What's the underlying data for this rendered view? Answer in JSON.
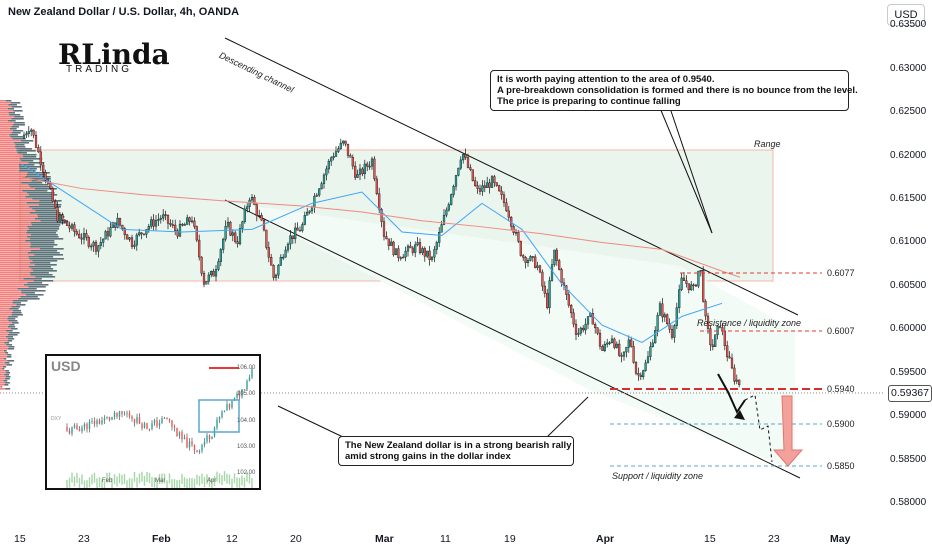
{
  "header": {
    "title": "New Zealand Dollar / U.S. Dollar, 4h, OANDA",
    "currency_button": "USD"
  },
  "logo": {
    "mark": "RLinda",
    "sub": "TRADING"
  },
  "annotations": {
    "top_note": [
      "It is worth paying attention to the area of 0.9540.",
      "A pre-breakdown consolidation is formed and there is no bounce from the level.",
      "The price is preparing to continue falling"
    ],
    "bottom_note": [
      "The New Zealand dollar is in a strong bearish rally",
      "amid strong gains in the dollar index"
    ],
    "channel_label": "Descending channel",
    "range_label": "Range",
    "resistance_label": "Resistance / liquidity zone",
    "support_label": "Support / liquidity zone"
  },
  "levels": [
    "0.6077",
    "0.6007",
    "0.5940",
    "0.5900",
    "0.5850"
  ],
  "current_price": "0.59367",
  "colors": {
    "bull": "#26a69a",
    "bear": "#ef5350",
    "ma_blue": "#42a5f5",
    "ma_red": "#f08a80",
    "range_fill": "#eaf5ee",
    "range_border": "#f5b7a8",
    "arrow": "#e57373"
  },
  "chart_data": {
    "type": "candlestick",
    "x_ticks": [
      "15",
      "23",
      "Feb",
      "12",
      "20",
      "Mar",
      "11",
      "19",
      "Apr",
      "15",
      "23",
      "May"
    ],
    "y_ticks": [
      "0.63500",
      "0.63000",
      "0.62500",
      "0.62000",
      "0.61500",
      "0.61000",
      "0.60500",
      "0.60000",
      "0.59500",
      "0.59000",
      "0.58500",
      "0.58000"
    ],
    "ylim": [
      0.5775,
      0.6372
    ],
    "path": [
      [
        0,
        0.622
      ],
      [
        8,
        0.6235
      ],
      [
        20,
        0.619
      ],
      [
        35,
        0.613
      ],
      [
        55,
        0.611
      ],
      [
        75,
        0.6095
      ],
      [
        95,
        0.6125
      ],
      [
        110,
        0.61
      ],
      [
        125,
        0.6118
      ],
      [
        140,
        0.613
      ],
      [
        155,
        0.6112
      ],
      [
        170,
        0.6128
      ],
      [
        182,
        0.6055
      ],
      [
        192,
        0.6065
      ],
      [
        205,
        0.612
      ],
      [
        215,
        0.61
      ],
      [
        228,
        0.6155
      ],
      [
        240,
        0.612
      ],
      [
        252,
        0.6058
      ],
      [
        265,
        0.6102
      ],
      [
        280,
        0.6118
      ],
      [
        295,
        0.616
      ],
      [
        310,
        0.62
      ],
      [
        322,
        0.6215
      ],
      [
        335,
        0.6175
      ],
      [
        350,
        0.6195
      ],
      [
        362,
        0.611
      ],
      [
        375,
        0.6085
      ],
      [
        395,
        0.6095
      ],
      [
        410,
        0.608
      ],
      [
        425,
        0.614
      ],
      [
        440,
        0.6205
      ],
      [
        455,
        0.6158
      ],
      [
        470,
        0.617
      ],
      [
        485,
        0.614
      ],
      [
        500,
        0.6085
      ],
      [
        515,
        0.6075
      ],
      [
        525,
        0.6028
      ],
      [
        532,
        0.609
      ],
      [
        545,
        0.6035
      ],
      [
        555,
        0.5995
      ],
      [
        570,
        0.6015
      ],
      [
        580,
        0.5975
      ],
      [
        590,
        0.5992
      ],
      [
        600,
        0.5962
      ],
      [
        608,
        0.599
      ],
      [
        615,
        0.5945
      ],
      [
        625,
        0.5962
      ],
      [
        638,
        0.6025
      ],
      [
        650,
        0.5995
      ],
      [
        660,
        0.6058
      ],
      [
        672,
        0.6045
      ],
      [
        678,
        0.6075
      ],
      [
        684,
        0.6005
      ],
      [
        690,
        0.5978
      ],
      [
        698,
        0.6007
      ],
      [
        705,
        0.5972
      ],
      [
        712,
        0.5945
      ],
      [
        718,
        0.5937
      ]
    ],
    "ma_blue": [
      [
        0,
        0.619
      ],
      [
        40,
        0.616
      ],
      [
        100,
        0.6115
      ],
      [
        160,
        0.6112
      ],
      [
        230,
        0.6115
      ],
      [
        290,
        0.6145
      ],
      [
        340,
        0.6158
      ],
      [
        380,
        0.6112
      ],
      [
        420,
        0.6108
      ],
      [
        460,
        0.6145
      ],
      [
        500,
        0.6115
      ],
      [
        540,
        0.6052
      ],
      [
        580,
        0.6005
      ],
      [
        620,
        0.5985
      ],
      [
        660,
        0.6015
      ],
      [
        700,
        0.603
      ]
    ],
    "ma_red": [
      [
        0,
        0.6175
      ],
      [
        60,
        0.6162
      ],
      [
        120,
        0.6155
      ],
      [
        200,
        0.6148
      ],
      [
        280,
        0.6142
      ],
      [
        340,
        0.6135
      ],
      [
        400,
        0.6125
      ],
      [
        460,
        0.6118
      ],
      [
        520,
        0.611
      ],
      [
        580,
        0.61
      ],
      [
        640,
        0.6092
      ],
      [
        700,
        0.6067
      ],
      [
        718,
        0.606
      ]
    ],
    "volume_profile": true,
    "inset": {
      "title": "USD",
      "y_ticks": [
        "106.00",
        "105.00",
        "104.00",
        "103.00",
        "102.00"
      ],
      "x_ticks": [
        "Feb",
        "Mar",
        "Apr"
      ],
      "label": "DXY"
    }
  }
}
